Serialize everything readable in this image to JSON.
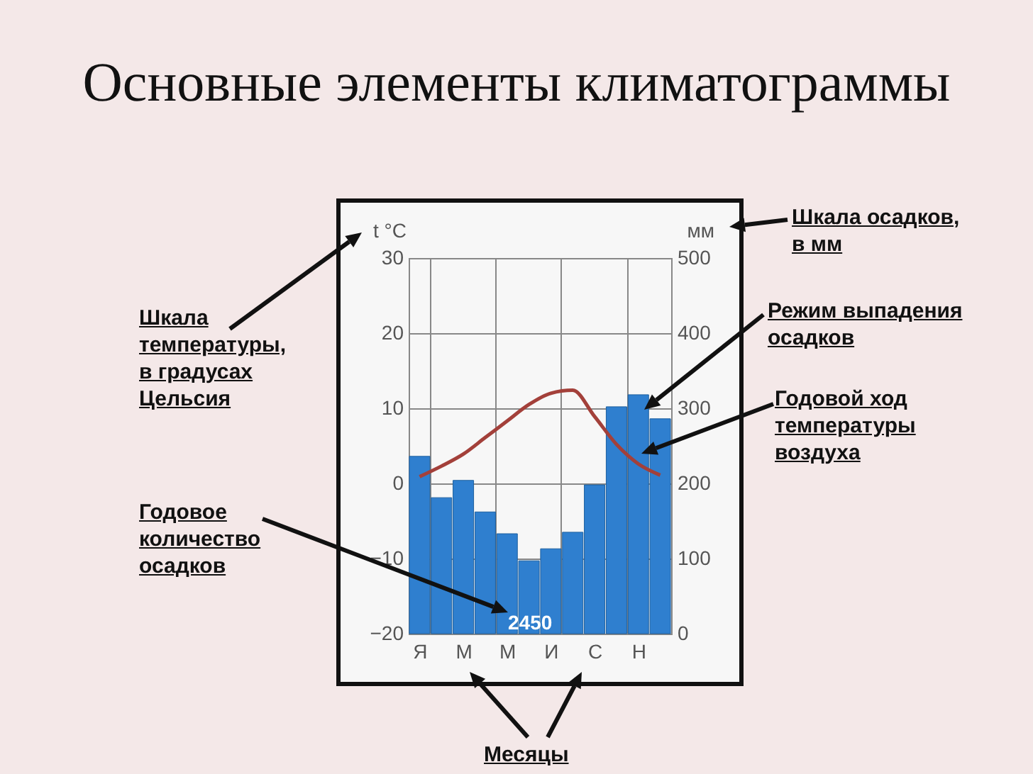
{
  "chart_data": {
    "type": "bar",
    "title": "Основные элементы климатограммы",
    "ylabel": "t °C",
    "y2label": "мм",
    "categories": [
      "Я",
      null,
      "М",
      null,
      "М",
      null,
      "И",
      null,
      "С",
      null,
      "Н",
      null
    ],
    "series": [
      {
        "axis": "y2",
        "color": "#2f7fcf",
        "values": [
          236,
          181,
          204,
          162,
          133,
          97,
          113,
          135,
          198,
          302,
          318,
          286
        ]
      },
      {
        "type": "line",
        "color": "#a3403a",
        "values": [
          0.9,
          2.3,
          3.9,
          6.1,
          8.3,
          10.5,
          12.0,
          12.4,
          8.9,
          5.2,
          2.6,
          1.1
        ]
      }
    ],
    "ylim": [
      -20,
      30
    ],
    "yticks": [
      -20,
      -10,
      0,
      10,
      20,
      30
    ],
    "y2lim": [
      0,
      500
    ],
    "y2ticks": [
      0,
      100,
      200,
      300,
      400,
      500
    ],
    "grid": true,
    "annotations": [
      "Шкала осадков, в мм",
      "Режим выпадения осадков",
      "Годовой ход температуры воздуха",
      "Шкала температуры, в градусах Цельсия",
      "Годовое количество осадков",
      "2450",
      "Месяцы"
    ]
  }
}
